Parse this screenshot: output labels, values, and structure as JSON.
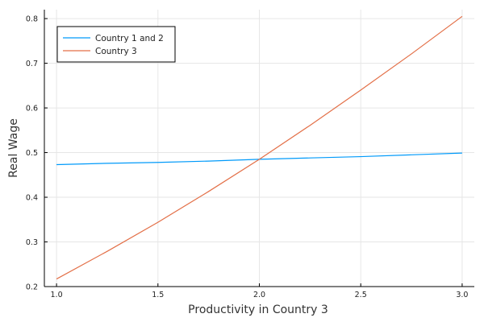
{
  "chart_data": {
    "type": "line",
    "title": "",
    "xlabel": "Productivity in Country 3",
    "ylabel": "Real Wage",
    "xlim": [
      0.94,
      3.06
    ],
    "ylim": [
      0.2,
      0.82
    ],
    "xticks": [
      1.0,
      1.5,
      2.0,
      2.5,
      3.0
    ],
    "xtick_labels": [
      "1.0",
      "1.5",
      "2.0",
      "2.5",
      "3.0"
    ],
    "yticks": [
      0.2,
      0.3,
      0.4,
      0.5,
      0.6,
      0.7,
      0.8
    ],
    "ytick_labels": [
      "0.2",
      "0.3",
      "0.4",
      "0.5",
      "0.6",
      "0.7",
      "0.8"
    ],
    "grid": true,
    "legend_position": "top-left",
    "series": [
      {
        "name": "Country 1 and 2",
        "color": "#009AFA",
        "x": [
          1.0,
          1.25,
          1.5,
          1.75,
          2.0,
          2.25,
          2.5,
          2.75,
          3.0
        ],
        "y": [
          0.473,
          0.476,
          0.478,
          0.481,
          0.485,
          0.488,
          0.491,
          0.495,
          0.499
        ]
      },
      {
        "name": "Country 3",
        "color": "#E36F47",
        "x": [
          1.0,
          1.25,
          1.5,
          1.75,
          2.0,
          2.25,
          2.5,
          2.75,
          3.0
        ],
        "y": [
          0.217,
          0.279,
          0.344,
          0.413,
          0.485,
          0.561,
          0.64,
          0.721,
          0.805
        ]
      }
    ]
  }
}
